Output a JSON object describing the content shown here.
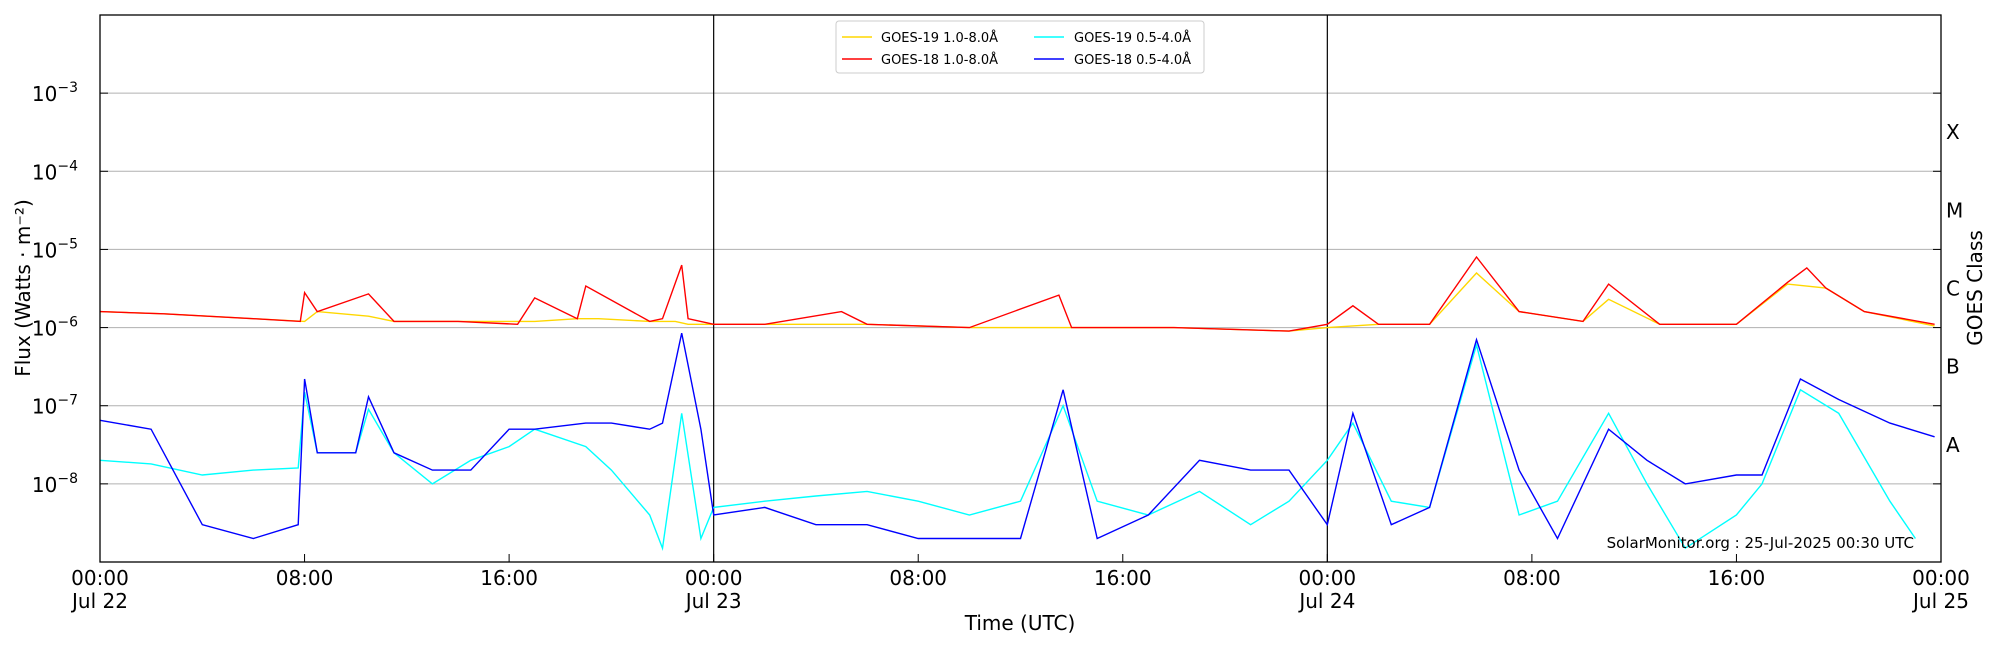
{
  "chart_data": {
    "type": "line",
    "title": "",
    "xlabel": "Time (UTC)",
    "ylabel": "Flux (Watts · m⁻²)",
    "ylabel_right": "GOES Class",
    "y_scale": "log",
    "ylim": [
      1e-09,
      0.01
    ],
    "xlim": [
      "2025-07-22T00:00Z",
      "2025-07-25T00:00Z"
    ],
    "grid": "horizontal",
    "legend_position": "upper-center",
    "y_ticks": [
      {
        "value": 1e-08,
        "label": "10",
        "exp": "−8"
      },
      {
        "value": 1e-07,
        "label": "10",
        "exp": "−7"
      },
      {
        "value": 1e-06,
        "label": "10",
        "exp": "−6"
      },
      {
        "value": 1e-05,
        "label": "10",
        "exp": "−5"
      },
      {
        "value": 0.0001,
        "label": "10",
        "exp": "−4"
      },
      {
        "value": 0.001,
        "label": "10",
        "exp": "−3"
      }
    ],
    "x_ticks": [
      {
        "time": "2025-07-22T00:00Z",
        "label": "00:00",
        "sublabel": "Jul 22"
      },
      {
        "time": "2025-07-22T08:00Z",
        "label": "08:00",
        "sublabel": ""
      },
      {
        "time": "2025-07-22T16:00Z",
        "label": "16:00",
        "sublabel": ""
      },
      {
        "time": "2025-07-23T00:00Z",
        "label": "00:00",
        "sublabel": "Jul 23"
      },
      {
        "time": "2025-07-23T08:00Z",
        "label": "08:00",
        "sublabel": ""
      },
      {
        "time": "2025-07-23T16:00Z",
        "label": "16:00",
        "sublabel": ""
      },
      {
        "time": "2025-07-24T00:00Z",
        "label": "00:00",
        "sublabel": "Jul 24"
      },
      {
        "time": "2025-07-24T08:00Z",
        "label": "08:00",
        "sublabel": ""
      },
      {
        "time": "2025-07-24T16:00Z",
        "label": "16:00",
        "sublabel": ""
      },
      {
        "time": "2025-07-25T00:00Z",
        "label": "00:00",
        "sublabel": "Jul 25"
      }
    ],
    "day_dividers": [
      "2025-07-23T00:00Z",
      "2025-07-24T00:00Z"
    ],
    "goes_classes": [
      {
        "label": "A",
        "value": 3.16e-08
      },
      {
        "label": "B",
        "value": 3.16e-07
      },
      {
        "label": "C",
        "value": 3.16e-06
      },
      {
        "label": "M",
        "value": 3.16e-05
      },
      {
        "label": "X",
        "value": 0.000316
      }
    ],
    "annotation": "SolarMonitor.org : 25-Jul-2025 00:30 UTC",
    "series": [
      {
        "name": "GOES-19 1.0-8.0Å",
        "color": "#ffd700",
        "x": [
          "2025-07-22T00:00Z",
          "2025-07-22T02:30Z",
          "2025-07-22T06:00Z",
          "2025-07-22T08:00Z",
          "2025-07-22T08:30Z",
          "2025-07-22T10:30Z",
          "2025-07-22T11:30Z",
          "2025-07-22T14:00Z",
          "2025-07-22T17:00Z",
          "2025-07-22T18:40Z",
          "2025-07-22T19:30Z",
          "2025-07-22T21:30Z",
          "2025-07-22T22:30Z",
          "2025-07-22T23:00Z",
          "2025-07-23T00:00Z",
          "2025-07-23T02:00Z",
          "2025-07-23T06:00Z",
          "2025-07-23T10:00Z",
          "2025-07-23T14:00Z",
          "2025-07-23T18:00Z",
          "2025-07-23T22:30Z",
          "2025-07-24T00:00Z",
          "2025-07-24T02:00Z",
          "2025-07-24T04:00Z",
          "2025-07-24T05:50Z",
          "2025-07-24T07:30Z",
          "2025-07-24T10:00Z",
          "2025-07-24T11:00Z",
          "2025-07-24T13:00Z",
          "2025-07-24T16:00Z",
          "2025-07-24T18:00Z",
          "2025-07-24T19:30Z",
          "2025-07-24T21:00Z",
          "2025-07-24T23:45Z"
        ],
        "y": [
          1.6e-06,
          1.5e-06,
          1.3e-06,
          1.2e-06,
          1.6e-06,
          1.4e-06,
          1.2e-06,
          1.2e-06,
          1.2e-06,
          1.3e-06,
          1.3e-06,
          1.2e-06,
          1.2e-06,
          1.1e-06,
          1.1e-06,
          1.1e-06,
          1.1e-06,
          1e-06,
          1e-06,
          1e-06,
          9e-07,
          1e-06,
          1.1e-06,
          1.1e-06,
          5e-06,
          1.6e-06,
          1.2e-06,
          2.3e-06,
          1.1e-06,
          1.1e-06,
          3.6e-06,
          3.2e-06,
          1.6e-06,
          1.05e-06
        ]
      },
      {
        "name": "GOES-18 1.0-8.0Å",
        "color": "#ff0000",
        "x": [
          "2025-07-22T00:00Z",
          "2025-07-22T02:30Z",
          "2025-07-22T06:00Z",
          "2025-07-22T07:50Z",
          "2025-07-22T08:00Z",
          "2025-07-22T08:30Z",
          "2025-07-22T10:30Z",
          "2025-07-22T11:30Z",
          "2025-07-22T14:00Z",
          "2025-07-22T16:20Z",
          "2025-07-22T17:00Z",
          "2025-07-22T18:40Z",
          "2025-07-22T19:00Z",
          "2025-07-22T21:30Z",
          "2025-07-22T22:00Z",
          "2025-07-22T22:45Z",
          "2025-07-22T23:00Z",
          "2025-07-23T00:00Z",
          "2025-07-23T02:00Z",
          "2025-07-23T05:00Z",
          "2025-07-23T06:00Z",
          "2025-07-23T10:00Z",
          "2025-07-23T13:30Z",
          "2025-07-23T14:00Z",
          "2025-07-23T18:00Z",
          "2025-07-23T22:30Z",
          "2025-07-24T00:00Z",
          "2025-07-24T01:00Z",
          "2025-07-24T02:00Z",
          "2025-07-24T04:00Z",
          "2025-07-24T05:50Z",
          "2025-07-24T07:30Z",
          "2025-07-24T10:00Z",
          "2025-07-24T11:00Z",
          "2025-07-24T13:00Z",
          "2025-07-24T16:00Z",
          "2025-07-24T18:00Z",
          "2025-07-24T18:45Z",
          "2025-07-24T19:30Z",
          "2025-07-24T21:00Z",
          "2025-07-24T23:45Z"
        ],
        "y": [
          1.6e-06,
          1.5e-06,
          1.3e-06,
          1.2e-06,
          2.8e-06,
          1.6e-06,
          2.7e-06,
          1.2e-06,
          1.2e-06,
          1.1e-06,
          2.4e-06,
          1.3e-06,
          3.4e-06,
          1.2e-06,
          1.3e-06,
          6.3e-06,
          1.3e-06,
          1.1e-06,
          1.1e-06,
          1.6e-06,
          1.1e-06,
          1e-06,
          2.6e-06,
          1e-06,
          1e-06,
          9e-07,
          1.1e-06,
          1.9e-06,
          1.1e-06,
          1.1e-06,
          8e-06,
          1.6e-06,
          1.2e-06,
          3.6e-06,
          1.1e-06,
          1.1e-06,
          3.8e-06,
          5.8e-06,
          3.2e-06,
          1.6e-06,
          1.1e-06
        ]
      },
      {
        "name": "GOES-19 0.5-4.0Å",
        "color": "#00ffff",
        "x": [
          "2025-07-22T00:00Z",
          "2025-07-22T02:00Z",
          "2025-07-22T04:00Z",
          "2025-07-22T06:00Z",
          "2025-07-22T07:45Z",
          "2025-07-22T08:00Z",
          "2025-07-22T08:30Z",
          "2025-07-22T10:00Z",
          "2025-07-22T10:30Z",
          "2025-07-22T11:30Z",
          "2025-07-22T13:00Z",
          "2025-07-22T14:30Z",
          "2025-07-22T16:00Z",
          "2025-07-22T17:00Z",
          "2025-07-22T19:00Z",
          "2025-07-22T20:00Z",
          "2025-07-22T21:30Z",
          "2025-07-22T22:00Z",
          "2025-07-22T22:45Z",
          "2025-07-22T23:30Z",
          "2025-07-23T00:00Z",
          "2025-07-23T02:00Z",
          "2025-07-23T04:00Z",
          "2025-07-23T06:00Z",
          "2025-07-23T08:00Z",
          "2025-07-23T10:00Z",
          "2025-07-23T12:00Z",
          "2025-07-23T13:40Z",
          "2025-07-23T15:00Z",
          "2025-07-23T17:00Z",
          "2025-07-23T19:00Z",
          "2025-07-23T21:00Z",
          "2025-07-23T22:30Z",
          "2025-07-24T00:00Z",
          "2025-07-24T01:00Z",
          "2025-07-24T02:30Z",
          "2025-07-24T04:00Z",
          "2025-07-24T05:50Z",
          "2025-07-24T07:30Z",
          "2025-07-24T09:00Z",
          "2025-07-24T11:00Z",
          "2025-07-24T12:30Z",
          "2025-07-24T14:00Z",
          "2025-07-24T16:00Z",
          "2025-07-24T17:00Z",
          "2025-07-24T18:30Z",
          "2025-07-24T20:00Z",
          "2025-07-24T22:00Z",
          "2025-07-24T23:00Z"
        ],
        "y": [
          2e-08,
          1.8e-08,
          1.3e-08,
          1.5e-08,
          1.6e-08,
          1.5e-07,
          2.5e-08,
          2.5e-08,
          9e-08,
          2.5e-08,
          1e-08,
          2e-08,
          3e-08,
          5e-08,
          3e-08,
          1.5e-08,
          4e-09,
          1.5e-09,
          8e-08,
          2e-09,
          5e-09,
          6e-09,
          7e-09,
          8e-09,
          6e-09,
          4e-09,
          6e-09,
          1e-07,
          6e-09,
          4e-09,
          8e-09,
          3e-09,
          6e-09,
          2e-08,
          6e-08,
          6e-09,
          5e-09,
          6e-07,
          4e-09,
          6e-09,
          8e-08,
          1e-08,
          1.5e-09,
          4e-09,
          1e-08,
          1.6e-07,
          8e-08,
          6e-09,
          2e-09
        ]
      },
      {
        "name": "GOES-18 0.5-4.0Å",
        "color": "#0000ff",
        "x": [
          "2025-07-22T00:00Z",
          "2025-07-22T02:00Z",
          "2025-07-22T04:00Z",
          "2025-07-22T06:00Z",
          "2025-07-22T07:45Z",
          "2025-07-22T08:00Z",
          "2025-07-22T08:30Z",
          "2025-07-22T10:00Z",
          "2025-07-22T10:30Z",
          "2025-07-22T11:30Z",
          "2025-07-22T13:00Z",
          "2025-07-22T14:30Z",
          "2025-07-22T16:00Z",
          "2025-07-22T17:00Z",
          "2025-07-22T19:00Z",
          "2025-07-22T20:00Z",
          "2025-07-22T21:30Z",
          "2025-07-22T22:00Z",
          "2025-07-22T22:45Z",
          "2025-07-22T23:30Z",
          "2025-07-23T00:00Z",
          "2025-07-23T02:00Z",
          "2025-07-23T04:00Z",
          "2025-07-23T06:00Z",
          "2025-07-23T08:00Z",
          "2025-07-23T10:00Z",
          "2025-07-23T12:00Z",
          "2025-07-23T13:40Z",
          "2025-07-23T15:00Z",
          "2025-07-23T17:00Z",
          "2025-07-23T19:00Z",
          "2025-07-23T21:00Z",
          "2025-07-23T22:30Z",
          "2025-07-24T00:00Z",
          "2025-07-24T01:00Z",
          "2025-07-24T02:30Z",
          "2025-07-24T04:00Z",
          "2025-07-24T05:50Z",
          "2025-07-24T07:30Z",
          "2025-07-24T09:00Z",
          "2025-07-24T11:00Z",
          "2025-07-24T12:30Z",
          "2025-07-24T14:00Z",
          "2025-07-24T16:00Z",
          "2025-07-24T17:00Z",
          "2025-07-24T18:30Z",
          "2025-07-24T20:00Z",
          "2025-07-24T22:00Z",
          "2025-07-24T23:45Z"
        ],
        "y": [
          6.5e-08,
          5e-08,
          3e-09,
          2e-09,
          3e-09,
          2.2e-07,
          2.5e-08,
          2.5e-08,
          1.3e-07,
          2.5e-08,
          1.5e-08,
          1.5e-08,
          5e-08,
          5e-08,
          6e-08,
          6e-08,
          5e-08,
          6e-08,
          8.5e-07,
          5e-08,
          4e-09,
          5e-09,
          3e-09,
          3e-09,
          2e-09,
          2e-09,
          2e-09,
          1.6e-07,
          2e-09,
          4e-09,
          2e-08,
          1.5e-08,
          1.5e-08,
          3e-09,
          8e-08,
          3e-09,
          5e-09,
          7e-07,
          1.5e-08,
          2e-09,
          5e-08,
          2e-08,
          1e-08,
          1.3e-08,
          1.3e-08,
          2.2e-07,
          1.2e-07,
          6e-08,
          4e-08
        ]
      }
    ]
  }
}
